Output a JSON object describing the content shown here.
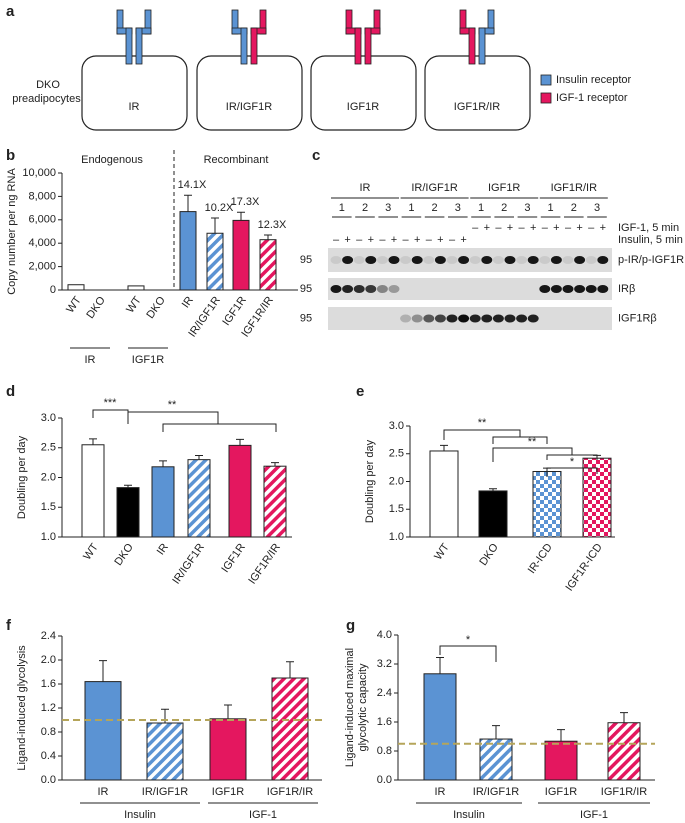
{
  "panel_labels": [
    "a",
    "b",
    "c",
    "d",
    "e",
    "f",
    "g"
  ],
  "diagram": {
    "side_label": [
      "DKO",
      "preadipocytes:"
    ],
    "boxes": [
      {
        "label": "IR",
        "colors": [
          "#5b93d3",
          "#5b93d3"
        ]
      },
      {
        "label": "IR/IGF1R",
        "colors": [
          "#5b93d3",
          "#e4175f"
        ]
      },
      {
        "label": "IGF1R",
        "colors": [
          "#e4175f",
          "#e4175f"
        ]
      },
      {
        "label": "IGF1R/IR",
        "colors": [
          "#e4175f",
          "#5b93d3"
        ]
      }
    ],
    "legend": [
      {
        "label": "Insulin receptor",
        "color": "#5b93d3"
      },
      {
        "label": "IGF-1 receptor",
        "color": "#e4175f"
      }
    ]
  },
  "blot": {
    "groups": [
      "IR",
      "IR/IGF1R",
      "IGF1R",
      "IGF1R/IR"
    ],
    "clones": [
      "1",
      "2",
      "3"
    ],
    "treatments": [
      "IGF-1, 5 min",
      "Insulin, 5 min"
    ],
    "igf1_signs": [
      "–",
      "+",
      "–",
      "+",
      "–",
      "+",
      "–",
      "+",
      "–",
      "+",
      "–",
      "+"
    ],
    "insulin_signs": [
      "–",
      "+",
      "–",
      "+",
      "–",
      "+",
      "–",
      "+",
      "–",
      "+",
      "–",
      "+"
    ],
    "marker": "95",
    "rows": [
      "p-IR/p-IGF1R",
      "IRβ",
      "IGF1Rβ"
    ]
  },
  "chart_data": [
    {
      "type": "bar",
      "ylabel": "Copy number per ng RNA",
      "categories": [
        "WT",
        "DKO",
        "WT",
        "DKO",
        "IR",
        "IR/IGF1R",
        "IGF1R",
        "IGF1R/IR"
      ],
      "values": [
        450,
        0,
        350,
        0,
        6700,
        4850,
        5950,
        4300
      ],
      "errors": [
        null,
        null,
        null,
        null,
        1400,
        1300,
        700,
        400
      ],
      "colors": [
        "#ffffff",
        "#ffffff",
        "#ffffff",
        "#ffffff",
        "#5b93d3",
        "#5b93d3",
        "#e4175f",
        "#e4175f"
      ],
      "fills": [
        "open",
        "open",
        "open",
        "open",
        "solid",
        "hatched",
        "solid",
        "hatched"
      ],
      "ylim": [
        0,
        10000
      ],
      "yticks": [
        0,
        {
          "value": 2000,
          "label": "2,000"
        },
        {
          "value": 4000,
          "label": "4,000"
        },
        {
          "value": 6000,
          "label": "6,000"
        },
        {
          "value": 8000,
          "label": "8,000"
        },
        {
          "value": 10000,
          "label": "10,000"
        }
      ],
      "section_labels": [
        "Endogenous",
        "Recombinant"
      ],
      "fold_labels": [
        "14.1X",
        "10.2X",
        "17.3X",
        "12.3X"
      ],
      "group_labels": [
        "IR",
        "IGF1R"
      ]
    },
    {
      "type": "bar",
      "ylabel": "Doubling per day",
      "categories": [
        "WT",
        "DKO",
        "IR",
        "IR/IGF1R",
        "IGF1R",
        "IGF1R/IR"
      ],
      "values": [
        2.55,
        1.83,
        2.18,
        2.3,
        2.54,
        2.19
      ],
      "errors": [
        0.1,
        0.04,
        0.1,
        0.07,
        0.1,
        0.06
      ],
      "colors": [
        "#ffffff",
        "#000000",
        "#5b93d3",
        "#5b93d3",
        "#e4175f",
        "#e4175f"
      ],
      "fills": [
        "open",
        "solid",
        "solid",
        "hatched",
        "solid",
        "hatched"
      ],
      "ylim": [
        1.0,
        3.0
      ],
      "yticks": [
        {
          "value": 1.0,
          "label": "1.0"
        },
        1.5,
        {
          "value": 2.0,
          "label": "2.0"
        },
        2.5,
        {
          "value": 3.0,
          "label": "3.0"
        }
      ],
      "significance": [
        "***",
        "**"
      ]
    },
    {
      "type": "bar",
      "ylabel": "Doubling per day",
      "categories": [
        "WT",
        "DKO",
        "IR-ICD",
        "IGF1R-ICD"
      ],
      "values": [
        2.55,
        1.83,
        2.18,
        2.42
      ],
      "errors": [
        0.1,
        0.04,
        0.06,
        0.05
      ],
      "colors": [
        "#ffffff",
        "#000000",
        "#5b93d3",
        "#e4175f"
      ],
      "fills": [
        "open",
        "solid",
        "checkered",
        "checkered"
      ],
      "ylim": [
        1.0,
        3.0
      ],
      "yticks": [
        {
          "value": 1.0,
          "label": "1.0"
        },
        1.5,
        {
          "value": 2.0,
          "label": "2.0"
        },
        2.5,
        {
          "value": 3.0,
          "label": "3.0"
        }
      ],
      "significance": [
        "**",
        "**",
        "*"
      ]
    },
    {
      "type": "bar",
      "ylabel": "Ligand-induced glycolysis",
      "categories": [
        "IR",
        "IR/IGF1R",
        "IGF1R",
        "IGF1R/IR"
      ],
      "values": [
        1.64,
        0.95,
        1.02,
        1.7
      ],
      "errors": [
        0.35,
        0.23,
        0.23,
        0.27
      ],
      "colors": [
        "#5b93d3",
        "#5b93d3",
        "#e4175f",
        "#e4175f"
      ],
      "fills": [
        "solid",
        "hatched",
        "solid",
        "hatched"
      ],
      "ylim": [
        0,
        2.4
      ],
      "yticks": [
        {
          "value": 0,
          "label": "0.0"
        },
        0.4,
        0.8,
        1.2,
        1.6,
        {
          "value": 2.0,
          "label": "2.0"
        },
        2.4
      ],
      "reference_line": 1.0,
      "reference_color": "#b5a55a",
      "group_labels": [
        "Insulin",
        "IGF-1"
      ]
    },
    {
      "type": "bar",
      "ylabel": [
        "Ligand-induced maximal",
        "glycolytic capacity"
      ],
      "categories": [
        "IR",
        "IR/IGF1R",
        "IGF1R",
        "IGF1R/IR"
      ],
      "values": [
        2.93,
        1.13,
        1.07,
        1.58
      ],
      "errors": [
        0.45,
        0.37,
        0.32,
        0.28
      ],
      "colors": [
        "#5b93d3",
        "#5b93d3",
        "#e4175f",
        "#e4175f"
      ],
      "fills": [
        "solid",
        "hatched",
        "solid",
        "hatched"
      ],
      "ylim": [
        0,
        4.0
      ],
      "yticks": [
        {
          "value": 0,
          "label": "0.0"
        },
        0.8,
        1.6,
        2.4,
        3.2,
        {
          "value": 4.0,
          "label": "4.0"
        }
      ],
      "reference_line": 1.0,
      "reference_color": "#b5a55a",
      "significance": [
        "*"
      ],
      "group_labels": [
        "Insulin",
        "IGF-1"
      ]
    }
  ]
}
